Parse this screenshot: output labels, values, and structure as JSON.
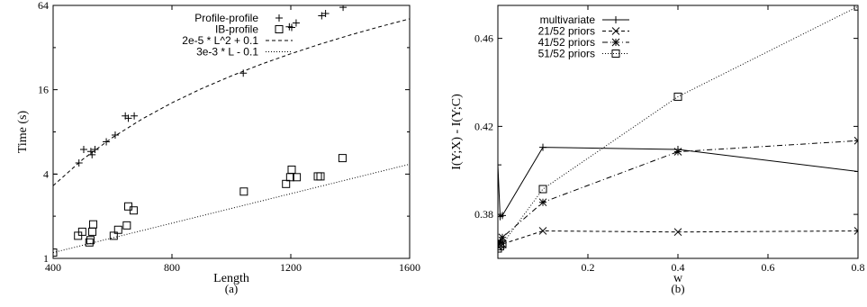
{
  "chart_data": [
    {
      "type": "scatter",
      "panel_label": "(a)",
      "xlabel": "Length",
      "ylabel": "Time (s)",
      "xlim": [
        400,
        1600
      ],
      "ylim": [
        1,
        64
      ],
      "yscale": "log2",
      "x_ticks": [
        {
          "v": 400,
          "label": "400"
        },
        {
          "v": 800,
          "label": "800"
        },
        {
          "v": 1200,
          "label": "1200"
        },
        {
          "v": 1600,
          "label": "1600"
        }
      ],
      "y_ticks": [
        {
          "v": 1,
          "label": "1"
        },
        {
          "v": 4,
          "label": "4"
        },
        {
          "v": 16,
          "label": "16"
        },
        {
          "v": 64,
          "label": "64"
        }
      ],
      "legend_position": "top-right",
      "series": [
        {
          "name": "Profile-profile",
          "marker": "plus",
          "x": [
            400,
            487,
            503,
            527,
            531,
            541,
            579,
            609,
            643,
            653,
            673,
            1040,
            1195,
            1203,
            1218,
            1304,
            1317,
            1376
          ],
          "y": [
            4.0,
            4.8,
            6.0,
            5.8,
            5.5,
            6.0,
            6.8,
            7.6,
            10.4,
            10.0,
            10.4,
            21.0,
            45.0,
            44.5,
            48.0,
            54.0,
            56.0,
            62.0
          ]
        },
        {
          "name": "IB-profile",
          "marker": "square",
          "x": [
            400,
            484,
            498,
            522,
            526,
            532,
            535,
            604,
            619,
            648,
            653,
            671,
            1042,
            1184,
            1198,
            1203,
            1220,
            1291,
            1300,
            1374
          ],
          "y": [
            1.1,
            1.45,
            1.55,
            1.3,
            1.35,
            1.55,
            1.75,
            1.45,
            1.6,
            1.72,
            2.35,
            2.2,
            3.0,
            3.4,
            3.8,
            4.3,
            3.8,
            3.85,
            3.85,
            5.2
          ]
        },
        {
          "name": "2e-5 * L^2 + 0.1",
          "style": "dashed",
          "x": [
            400,
            500,
            600,
            700,
            800,
            900,
            1000,
            1100,
            1200,
            1300,
            1400,
            1500,
            1600
          ],
          "y": [
            3.3,
            5.1,
            7.3,
            9.9,
            12.9,
            16.3,
            20.1,
            24.3,
            28.9,
            33.9,
            39.3,
            45.1,
            51.3
          ]
        },
        {
          "name": "3e-3 * L - 0.1",
          "style": "dotted",
          "x": [
            400,
            1600
          ],
          "y": [
            1.1,
            4.7
          ]
        }
      ]
    },
    {
      "type": "line",
      "panel_label": "(b)",
      "xlabel": "w",
      "ylabel": "I(Y;X) - I(Y;C)",
      "xlim": [
        0,
        0.8
      ],
      "ylim": [
        0.36,
        0.475
      ],
      "x_ticks": [
        {
          "v": 0.2,
          "label": "0.2"
        },
        {
          "v": 0.4,
          "label": "0.4"
        },
        {
          "v": 0.6,
          "label": "0.6"
        },
        {
          "v": 0.8,
          "label": "0.8"
        }
      ],
      "y_ticks": [
        {
          "v": 0.38,
          "label": "0.38"
        },
        {
          "v": 0.42,
          "label": "0.42"
        },
        {
          "v": 0.46,
          "label": "0.46"
        }
      ],
      "legend_position": "top-left",
      "series": [
        {
          "name": "multivariate",
          "marker": "plus",
          "style": "solid",
          "x": [
            0,
            0.005,
            0.01,
            0.1,
            0.4,
            0.8
          ],
          "y": [
            0.4025,
            0.379,
            0.3795,
            0.4105,
            0.4095,
            0.3995
          ]
        },
        {
          "name": "21/52 priors",
          "marker": "x",
          "style": "dashed",
          "x": [
            0,
            0.005,
            0.01,
            0.1,
            0.4,
            0.8
          ],
          "y": [
            0.3655,
            0.3665,
            0.3665,
            0.3725,
            0.372,
            0.3725
          ]
        },
        {
          "name": "41/52 priors",
          "marker": "star",
          "style": "dashdot",
          "x": [
            0,
            0.005,
            0.01,
            0.1,
            0.4,
            0.8
          ],
          "y": [
            0.3675,
            0.3675,
            0.3695,
            0.3855,
            0.4085,
            0.4135
          ]
        },
        {
          "name": "51/52 priors",
          "marker": "square",
          "style": "dotted",
          "x": [
            0,
            0.005,
            0.01,
            0.1,
            0.4,
            0.8
          ],
          "y": [
            0.3645,
            0.3655,
            0.3665,
            0.3915,
            0.4335,
            0.4745
          ]
        }
      ]
    }
  ]
}
